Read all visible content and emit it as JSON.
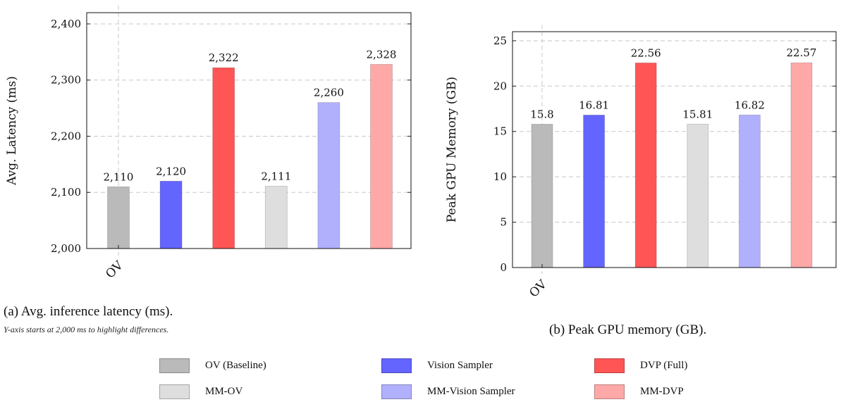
{
  "legend": [
    {
      "label": "OV (Baseline)",
      "color": "#bababa"
    },
    {
      "label": "Vision Sampler",
      "color": "#6464ff"
    },
    {
      "label": "DVP (Full)",
      "color": "#ff5555"
    },
    {
      "label": "MM-OV",
      "color": "#dedede"
    },
    {
      "label": "MM-Vision Sampler",
      "color": "#b0b0fd"
    },
    {
      "label": "MM-DVP",
      "color": "#ffa8a8"
    }
  ],
  "captions": {
    "a": "(a) Avg. inference latency (ms).",
    "a_note": "Y-axis starts at 2,000 ms to highlight differences.",
    "b": "(b) Peak GPU memory (GB)."
  },
  "chart_data": [
    {
      "type": "bar",
      "ylabel": "Avg. Latency (ms)",
      "ylim": [
        2000,
        2420
      ],
      "yticks": [
        2000,
        2100,
        2200,
        2300,
        2400
      ],
      "ytick_labels": [
        "2,000",
        "2,100",
        "2,200",
        "2,300",
        "2,400"
      ],
      "xtick_labels": [
        "OV"
      ],
      "grid": true,
      "categories": [
        "OV (Baseline)",
        "Vision Sampler",
        "DVP (Full)",
        "MM-OV",
        "MM-Vision Sampler",
        "MM-DVP"
      ],
      "values": [
        2110,
        2120,
        2322,
        2111,
        2260,
        2328
      ],
      "data_labels": [
        "2,110",
        "2,120",
        "2,322",
        "2,111",
        "2,260",
        "2,328"
      ]
    },
    {
      "type": "bar",
      "ylabel": "Peak GPU Memory (GB)",
      "ylim": [
        0,
        26
      ],
      "yticks": [
        0,
        5,
        10,
        15,
        20,
        25
      ],
      "ytick_labels": [
        "0",
        "5",
        "10",
        "15",
        "20",
        "25"
      ],
      "xtick_labels": [
        "OV"
      ],
      "grid": true,
      "categories": [
        "OV (Baseline)",
        "Vision Sampler",
        "DVP (Full)",
        "MM-OV",
        "MM-Vision Sampler",
        "MM-DVP"
      ],
      "values": [
        15.8,
        16.81,
        22.56,
        15.81,
        16.82,
        22.57
      ],
      "data_labels": [
        "15.8",
        "16.81",
        "22.56",
        "15.81",
        "16.82",
        "22.57"
      ]
    }
  ]
}
